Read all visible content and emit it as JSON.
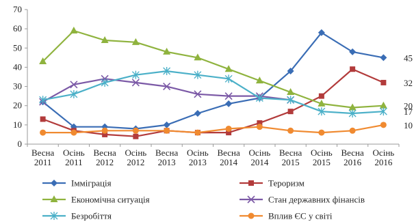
{
  "chart_data": {
    "type": "line",
    "title": "",
    "xlabel": "",
    "ylabel": "",
    "ylim": [
      0,
      70
    ],
    "yticks": [
      0,
      10,
      20,
      30,
      40,
      50,
      60,
      70
    ],
    "grid": false,
    "legend_position": "bottom",
    "categories": [
      [
        "Весна",
        "2011"
      ],
      [
        "Осінь",
        "2011"
      ],
      [
        "Весна",
        "2012"
      ],
      [
        "Осінь",
        "2012"
      ],
      [
        "Весна",
        "2013"
      ],
      [
        "Осінь",
        "2013"
      ],
      [
        "Весна",
        "2014"
      ],
      [
        "Осінь",
        "2014"
      ],
      [
        "Весна",
        "2015"
      ],
      [
        "Осінь",
        "2015"
      ],
      [
        "Весна",
        "2016"
      ],
      [
        "Осінь",
        "2016"
      ]
    ],
    "series": [
      {
        "name": "Імміграція",
        "color": "#3a6db5",
        "marker": "diamond",
        "values": [
          22,
          9,
          9,
          8,
          10,
          16,
          21,
          24,
          38,
          58,
          48,
          45
        ],
        "end_label": "45"
      },
      {
        "name": "Тероризм",
        "color": "#b23b3b",
        "marker": "square",
        "values": [
          13,
          7,
          5,
          4,
          7,
          6,
          6,
          11,
          17,
          25,
          39,
          32
        ],
        "end_label": "32"
      },
      {
        "name": "Економічна ситуація",
        "color": "#8fb33e",
        "marker": "triangle",
        "values": [
          43,
          59,
          54,
          53,
          48,
          45,
          39,
          33,
          27,
          21,
          19,
          20
        ],
        "end_label": "20"
      },
      {
        "name": "Стан державних фінансів",
        "color": "#7b59a6",
        "marker": "x",
        "values": [
          22,
          31,
          34,
          32,
          30,
          26,
          25,
          25,
          23,
          null,
          null,
          null
        ],
        "end_label": ""
      },
      {
        "name": "Безробіття",
        "color": "#4bb0c8",
        "marker": "star",
        "values": [
          23,
          26,
          32,
          36,
          38,
          36,
          34,
          24,
          23,
          17,
          16,
          17
        ],
        "end_label": "17"
      },
      {
        "name": "Вплив ЄС у світі",
        "color": "#f08a30",
        "marker": "circle",
        "values": [
          6,
          6,
          7,
          7,
          7,
          6,
          8,
          9,
          7,
          6,
          7,
          10
        ],
        "end_label": "10"
      }
    ]
  }
}
